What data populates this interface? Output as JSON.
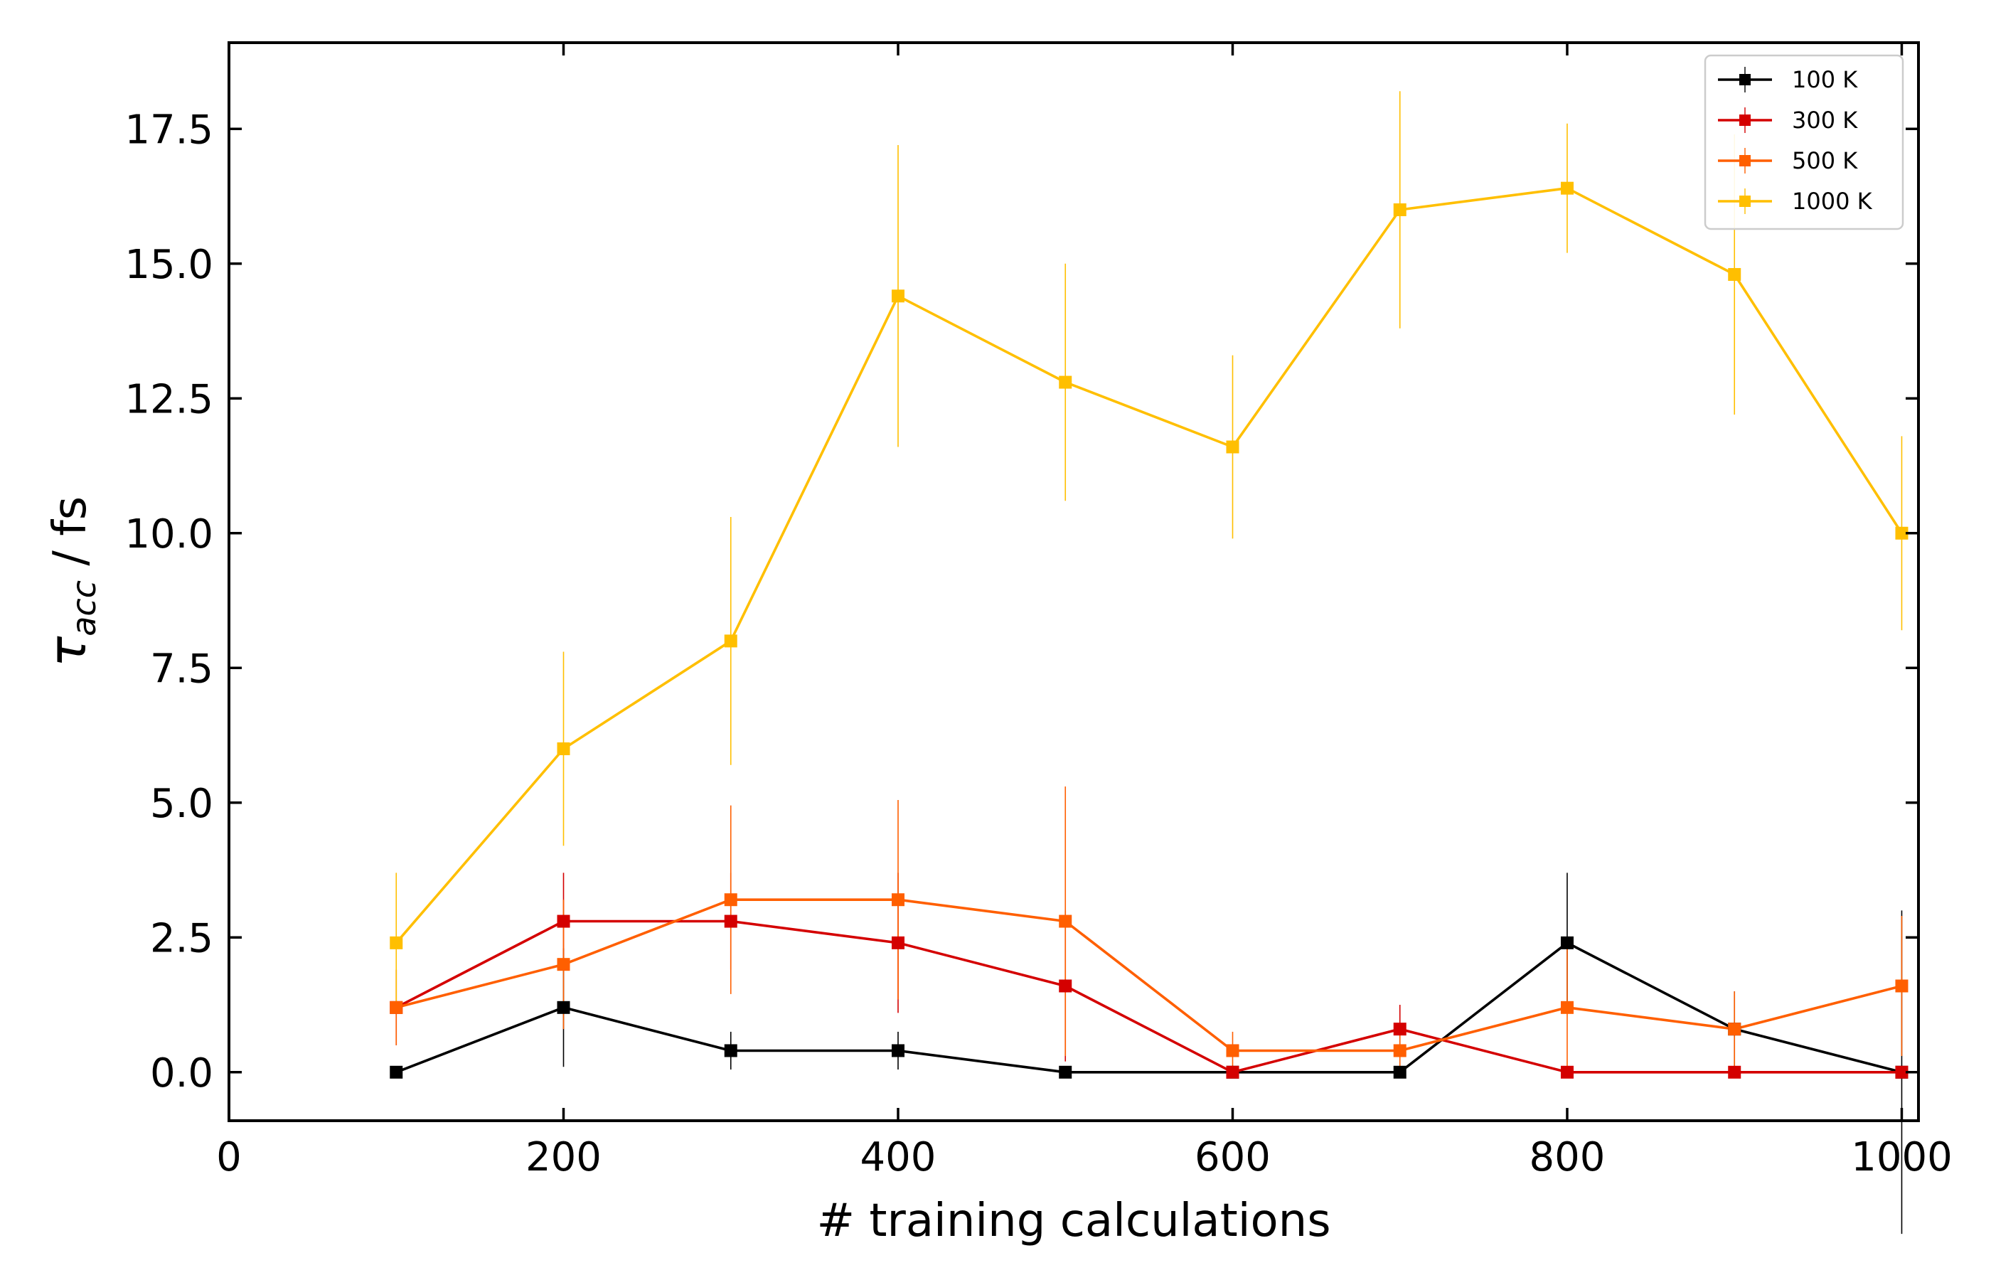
{
  "chart_data": {
    "type": "line",
    "xlabel": "# training calculations",
    "ylabel_main": "τ",
    "ylabel_sub": "acc",
    "ylabel_suffix": " / fs",
    "xlim": [
      0,
      1010
    ],
    "ylim": [
      -0.9,
      19.1
    ],
    "x_ticks": [
      0,
      200,
      400,
      600,
      800,
      1000
    ],
    "x_tick_labels": [
      "0",
      "200",
      "400",
      "600",
      "800",
      "1000"
    ],
    "y_ticks": [
      0.0,
      2.5,
      5.0,
      7.5,
      10.0,
      12.5,
      15.0,
      17.5
    ],
    "y_tick_labels": [
      "0.0",
      "2.5",
      "5.0",
      "7.5",
      "10.0",
      "12.5",
      "15.0",
      "17.5"
    ],
    "grid": false,
    "legend_position": "top-right",
    "x": [
      100,
      200,
      300,
      400,
      500,
      600,
      700,
      800,
      900,
      1000
    ],
    "series": [
      {
        "name": "100 K",
        "color": "#000000",
        "values": [
          0.0,
          1.2,
          0.4,
          0.4,
          0.0,
          0.0,
          0.0,
          2.4,
          0.8,
          0.0
        ],
        "errors": [
          0.0,
          1.1,
          0.35,
          0.35,
          0.0,
          0.0,
          0.0,
          1.3,
          0.7,
          3.0
        ]
      },
      {
        "name": "300 K",
        "color": "#d40000",
        "values": [
          1.2,
          2.8,
          2.8,
          2.4,
          1.6,
          0.0,
          0.8,
          0.0,
          0.0,
          0.0
        ],
        "errors": [
          0.7,
          0.9,
          0.9,
          1.3,
          1.4,
          0.0,
          0.45,
          0.0,
          0.0,
          0.0
        ]
      },
      {
        "name": "500 K",
        "color": "#ff5f00",
        "values": [
          1.2,
          2.0,
          3.2,
          3.2,
          2.8,
          0.4,
          0.4,
          1.2,
          0.8,
          1.6
        ],
        "errors": [
          0.7,
          1.2,
          1.75,
          1.85,
          2.5,
          0.35,
          0.35,
          1.1,
          0.7,
          1.3
        ]
      },
      {
        "name": "1000 K",
        "color": "#ffbf00",
        "values": [
          2.4,
          6.0,
          8.0,
          14.4,
          12.8,
          11.6,
          16.0,
          16.4,
          14.8,
          10.0
        ],
        "errors": [
          1.3,
          1.8,
          2.3,
          2.8,
          2.2,
          1.7,
          2.2,
          1.2,
          2.6,
          1.8
        ]
      }
    ]
  }
}
